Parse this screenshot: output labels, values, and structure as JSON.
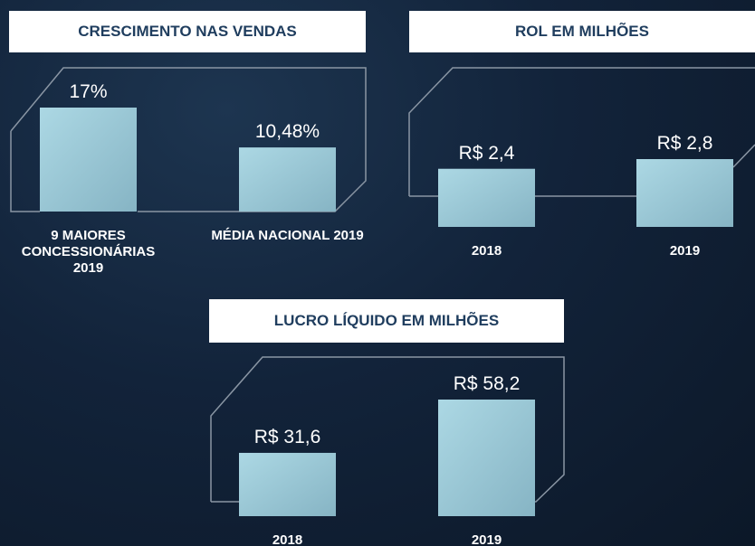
{
  "chart_data": [
    {
      "type": "bar",
      "title": "CRESCIMENTO NAS VENDAS",
      "categories": [
        "9 MAIORES CONCESSIONÁRIAS 2019",
        "MÉDIA NACIONAL 2019"
      ],
      "values": [
        17,
        10.48
      ],
      "value_labels": [
        "17%",
        "10,48%"
      ]
    },
    {
      "type": "bar",
      "title": "ROL EM MILHÕES",
      "categories": [
        "2018",
        "2019"
      ],
      "values": [
        2.4,
        2.8
      ],
      "value_labels": [
        "R$ 2,4",
        "R$ 2,8"
      ]
    },
    {
      "type": "bar",
      "title": "LUCRO LÍQUIDO EM MILHÕES",
      "categories": [
        "2018",
        "2019"
      ],
      "values": [
        31.6,
        58.2
      ],
      "value_labels": [
        "R$ 31,6",
        "R$ 58,2"
      ]
    }
  ]
}
